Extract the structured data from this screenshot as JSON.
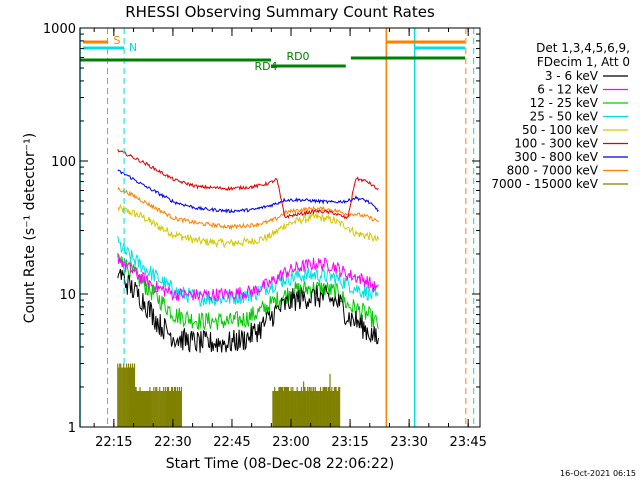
{
  "chart_data": {
    "type": "line",
    "title": "RHESSI Observing Summary Count Rates",
    "xlabel": "Start Time (08-Dec-08 22:06:22)",
    "ylabel": "Count Rate (s⁻¹ detector⁻¹)",
    "yscale": "log",
    "ylim": [
      1,
      1000
    ],
    "xlim_minutes": [
      0,
      101.6
    ],
    "x_ticks": [
      {
        "label": "22:15",
        "m": 8.6
      },
      {
        "label": "22:30",
        "m": 23.6
      },
      {
        "label": "22:45",
        "m": 38.6
      },
      {
        "label": "23:00",
        "m": 53.6
      },
      {
        "label": "23:15",
        "m": 68.6
      },
      {
        "label": "23:30",
        "m": 83.6
      },
      {
        "label": "23:45",
        "m": 98.6
      }
    ],
    "y_ticks": [
      {
        "label": "1",
        "v": 1
      },
      {
        "label": "10",
        "v": 10
      },
      {
        "label": "100",
        "v": 100
      },
      {
        "label": "1000",
        "v": 1000
      }
    ],
    "legend": {
      "placement": "right",
      "header": [
        "Det 1,3,4,5,6,9,",
        "FDecim 1, Att 0"
      ]
    },
    "series": [
      {
        "name": "3 - 6 keV",
        "color": "#000000",
        "points": [
          [
            9.6,
            15
          ],
          [
            12,
            12
          ],
          [
            16,
            9
          ],
          [
            20,
            6
          ],
          [
            24,
            4.7
          ],
          [
            30,
            4.3
          ],
          [
            38,
            4.3
          ],
          [
            42,
            4.6
          ],
          [
            46,
            5.6
          ],
          [
            50,
            7.5
          ],
          [
            54,
            9
          ],
          [
            58,
            9.5
          ],
          [
            62,
            9.5
          ],
          [
            66,
            8.5
          ],
          [
            68,
            6.8
          ],
          [
            70,
            6.3
          ],
          [
            72,
            5.6
          ],
          [
            74,
            5
          ],
          [
            76,
            4.3
          ]
        ]
      },
      {
        "name": "6 - 12 keV",
        "color": "#ff00ff",
        "points": [
          [
            9.6,
            19
          ],
          [
            12,
            16
          ],
          [
            16,
            13
          ],
          [
            20,
            11
          ],
          [
            24,
            10
          ],
          [
            30,
            9.8
          ],
          [
            38,
            10
          ],
          [
            44,
            10.5
          ],
          [
            48,
            12
          ],
          [
            52,
            14.5
          ],
          [
            56,
            16
          ],
          [
            60,
            17
          ],
          [
            64,
            16.5
          ],
          [
            68,
            14
          ],
          [
            70,
            13.5
          ],
          [
            73,
            12.5
          ],
          [
            76,
            10.5
          ]
        ]
      },
      {
        "name": "12 - 25 keV",
        "color": "#00cc00",
        "points": [
          [
            9.6,
            19
          ],
          [
            12,
            16
          ],
          [
            16,
            12
          ],
          [
            20,
            9.2
          ],
          [
            24,
            7
          ],
          [
            30,
            6.3
          ],
          [
            38,
            6.2
          ],
          [
            42,
            6.5
          ],
          [
            46,
            7.5
          ],
          [
            50,
            9
          ],
          [
            54,
            10.5
          ],
          [
            58,
            11
          ],
          [
            62,
            11
          ],
          [
            66,
            10
          ],
          [
            68,
            8.2
          ],
          [
            70,
            7.8
          ],
          [
            73,
            7
          ],
          [
            76,
            5.8
          ]
        ]
      },
      {
        "name": "25 - 50 keV",
        "color": "#00e0e0",
        "points": [
          [
            9.6,
            24
          ],
          [
            12,
            20
          ],
          [
            16,
            16
          ],
          [
            20,
            13
          ],
          [
            24,
            10.5
          ],
          [
            30,
            9.3
          ],
          [
            38,
            9.3
          ],
          [
            44,
            10
          ],
          [
            48,
            11.5
          ],
          [
            52,
            13
          ],
          [
            56,
            13.8
          ],
          [
            60,
            14
          ],
          [
            64,
            13.5
          ],
          [
            68,
            12
          ],
          [
            70,
            11
          ],
          [
            73,
            10.3
          ],
          [
            76,
            9
          ]
        ]
      },
      {
        "name": "50 - 100 keV",
        "color": "#d6c800",
        "points": [
          [
            9.6,
            44
          ],
          [
            12,
            42
          ],
          [
            16,
            38
          ],
          [
            20,
            32
          ],
          [
            24,
            28
          ],
          [
            30,
            25
          ],
          [
            38,
            24
          ],
          [
            44,
            25
          ],
          [
            48,
            27
          ],
          [
            50,
            29.5
          ],
          [
            52,
            33
          ],
          [
            56,
            36
          ],
          [
            60,
            38
          ],
          [
            64,
            36
          ],
          [
            68,
            32
          ],
          [
            70,
            28.5
          ],
          [
            73,
            27.5
          ],
          [
            76,
            25
          ]
        ]
      },
      {
        "name": "100 - 300 keV",
        "color": "#e00000",
        "points": [
          [
            9.6,
            120
          ],
          [
            12,
            112
          ],
          [
            16,
            98
          ],
          [
            20,
            84
          ],
          [
            24,
            72
          ],
          [
            30,
            64
          ],
          [
            38,
            62
          ],
          [
            44,
            64
          ],
          [
            48,
            68
          ],
          [
            50,
            73
          ],
          [
            52,
            38
          ],
          [
            56,
            40
          ],
          [
            60,
            42
          ],
          [
            64,
            41
          ],
          [
            68,
            37
          ],
          [
            70,
            74
          ],
          [
            73,
            70
          ],
          [
            76,
            60
          ]
        ]
      },
      {
        "name": "300 - 800 keV",
        "color": "#0000e0",
        "points": [
          [
            9.6,
            84
          ],
          [
            12,
            78
          ],
          [
            16,
            66
          ],
          [
            20,
            57
          ],
          [
            24,
            49
          ],
          [
            30,
            44
          ],
          [
            38,
            42
          ],
          [
            44,
            43
          ],
          [
            48,
            46
          ],
          [
            50,
            48
          ],
          [
            52,
            51
          ],
          [
            56,
            51
          ],
          [
            60,
            50
          ],
          [
            64,
            49
          ],
          [
            68,
            50
          ],
          [
            70,
            53
          ],
          [
            73,
            50
          ],
          [
            76,
            42
          ]
        ]
      },
      {
        "name": "800 - 7000 keV",
        "color": "#ff8000",
        "points": [
          [
            9.6,
            62
          ],
          [
            12,
            58
          ],
          [
            16,
            50
          ],
          [
            20,
            43
          ],
          [
            24,
            37
          ],
          [
            30,
            34
          ],
          [
            38,
            32
          ],
          [
            44,
            33
          ],
          [
            48,
            35
          ],
          [
            50,
            37
          ],
          [
            52,
            41
          ],
          [
            56,
            43
          ],
          [
            60,
            44
          ],
          [
            64,
            43
          ],
          [
            68,
            40
          ],
          [
            70,
            40
          ],
          [
            73,
            38
          ],
          [
            76,
            35
          ]
        ]
      },
      {
        "name": "7000 - 15000 keV",
        "color": "#808000",
        "points": []
      }
    ],
    "vertical_lines": [
      {
        "m": 0,
        "color": "#00e0e0",
        "style": "solid"
      },
      {
        "m": 7.0,
        "color": "#ff8000",
        "style": "dashed"
      },
      {
        "m": 11.2,
        "color": "#00e0e0",
        "style": "dashed"
      },
      {
        "m": 77.8,
        "color": "#ff8000",
        "style": "solid"
      },
      {
        "m": 85.0,
        "color": "#00e0e0",
        "style": "solid"
      },
      {
        "m": 98.0,
        "color": "#ff8000",
        "style": "dashed"
      },
      {
        "m": 100.0,
        "color": "#00e0e0",
        "style": "dashed"
      }
    ],
    "annotations": [
      {
        "text": "S",
        "color": "#ff8000"
      },
      {
        "text": "N",
        "color": "#00e0e0"
      },
      {
        "text": "RD0",
        "color": "#008000"
      },
      {
        "text": "RD4",
        "color": "#008000"
      }
    ],
    "timestamp": "16-Oct-2021 06:15"
  }
}
